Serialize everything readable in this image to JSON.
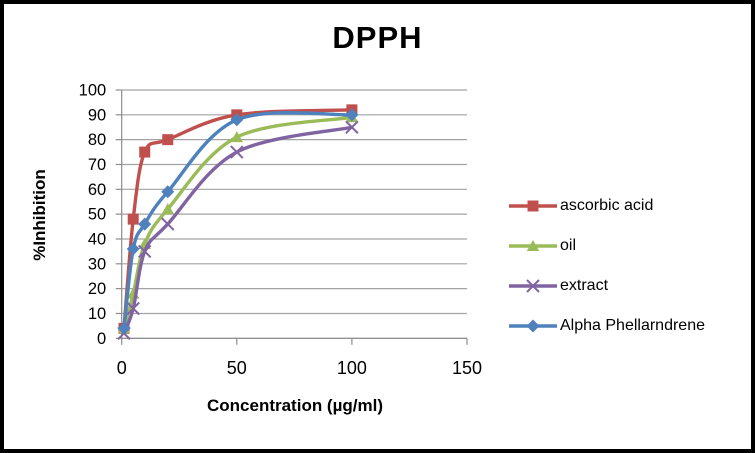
{
  "chart_data": {
    "type": "line",
    "title": "DPPH",
    "xlabel": "Concentration (µg/ml)",
    "ylabel": "%Inhibition",
    "x": [
      1,
      5,
      10,
      20,
      50,
      100
    ],
    "series": [
      {
        "name": "ascorbic acid",
        "color": "#C0504D",
        "marker": "square",
        "values": [
          4,
          48,
          75,
          80,
          90,
          92
        ]
      },
      {
        "name": "oil",
        "color": "#9BBB59",
        "marker": "triangle",
        "values": [
          4,
          18,
          38,
          52,
          81,
          89
        ]
      },
      {
        "name": "extract",
        "color": "#8064A2",
        "marker": "x",
        "values": [
          2,
          12,
          35,
          46,
          75,
          85
        ]
      },
      {
        "name": "Alpha Phellarndrene",
        "color": "#4F81BD",
        "marker": "diamond",
        "values": [
          4,
          36,
          46,
          59,
          88,
          90
        ]
      }
    ],
    "xlim": [
      0,
      150
    ],
    "ylim": [
      0,
      100
    ],
    "x_ticks": [
      0,
      50,
      100,
      150
    ],
    "y_ticks": [
      0,
      10,
      20,
      30,
      40,
      50,
      60,
      70,
      80,
      90,
      100
    ],
    "grid": "horizontal",
    "smooth_lines": true,
    "legend_position": "right"
  },
  "style": {
    "gridline_color": "#a3a3a3",
    "axis_color": "#8c8c8c",
    "text_color": "#000000",
    "background": "#ffffff",
    "frame_border": "#000000"
  }
}
